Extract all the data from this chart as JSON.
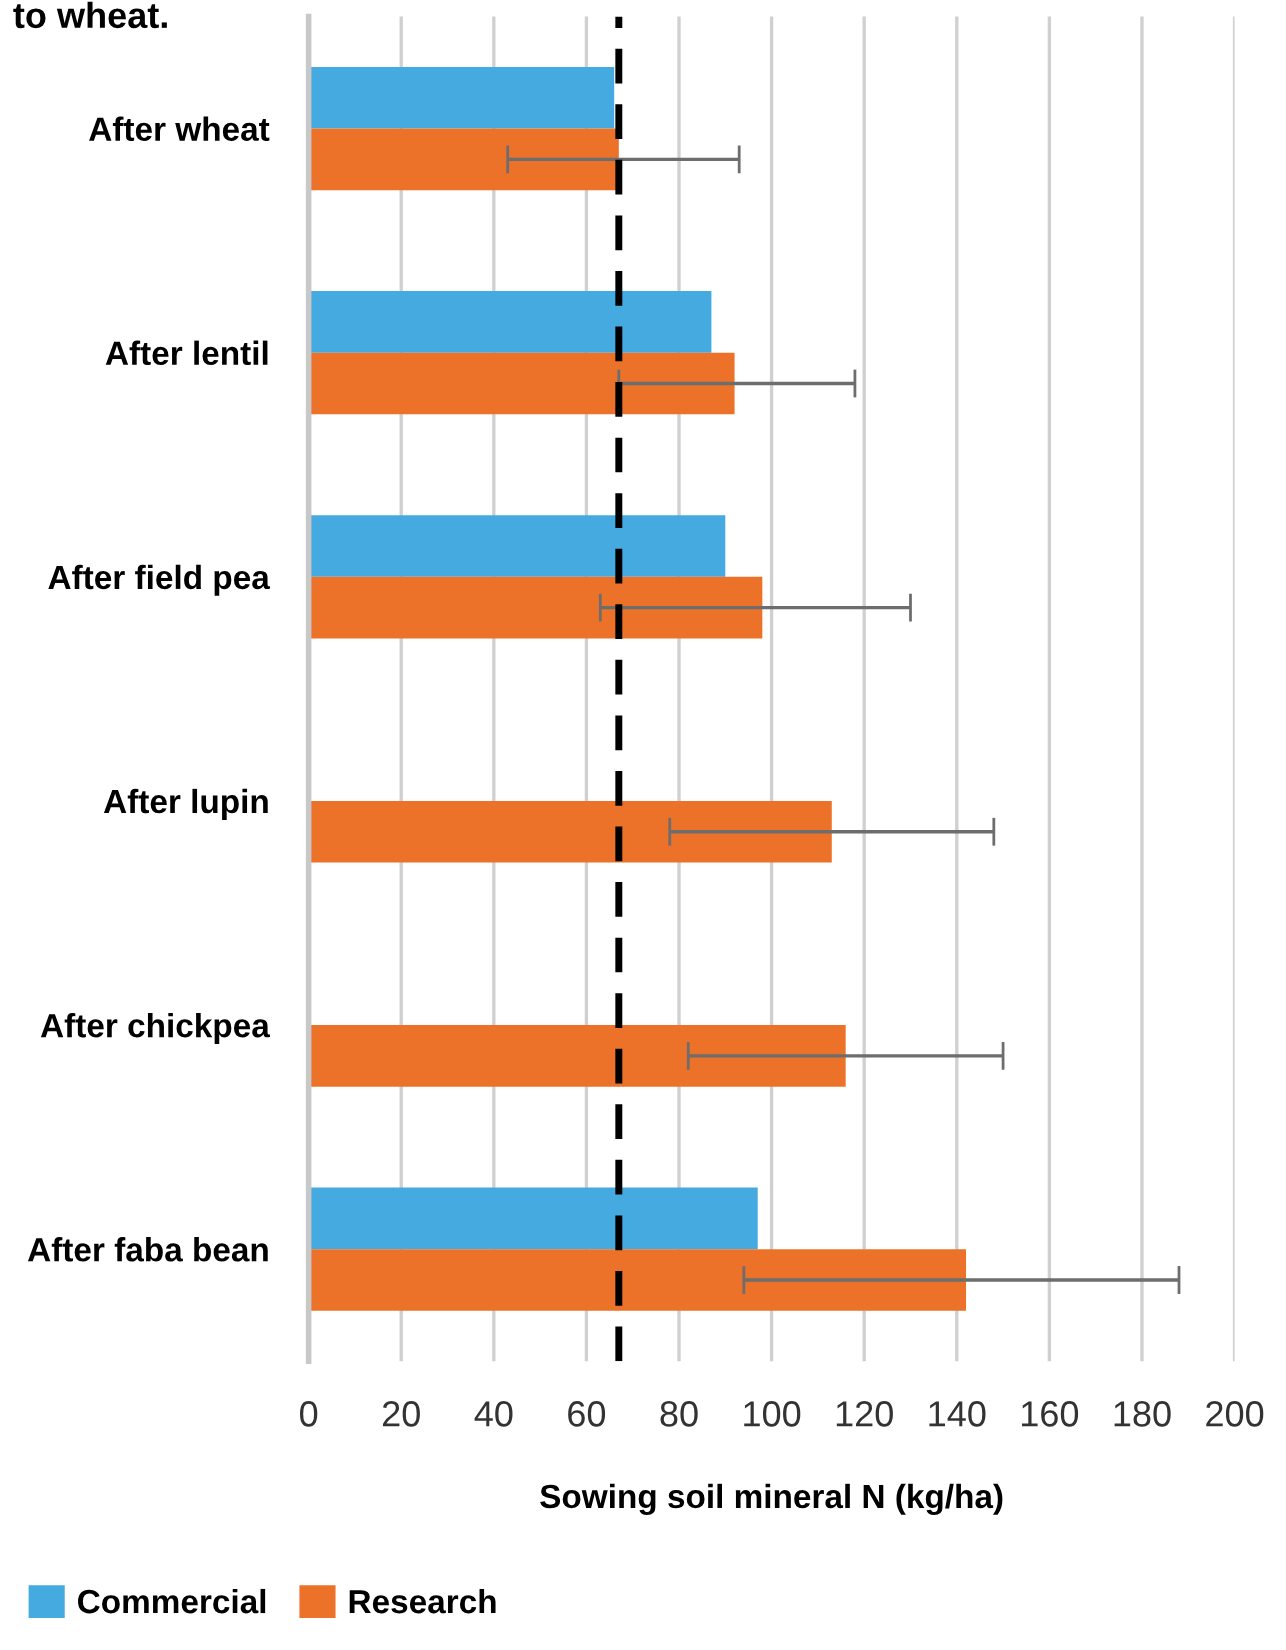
{
  "chart_data": {
    "type": "bar",
    "orientation": "horizontal",
    "title": "to wheat.",
    "xlabel": "Sowing soil mineral N (kg/ha)",
    "categories": [
      "After wheat",
      "After lentil",
      "After field pea",
      "After lupin",
      "After chickpea",
      "After faba bean"
    ],
    "series": [
      {
        "name": "Commercial",
        "color": "#45aae0",
        "values": [
          66,
          87,
          90,
          null,
          null,
          97
        ]
      },
      {
        "name": "Research",
        "color": "#ec7229",
        "values": [
          67,
          92,
          98,
          113,
          116,
          142
        ],
        "errors": [
          [
            43,
            93
          ],
          [
            67,
            118
          ],
          [
            63,
            130
          ],
          [
            78,
            148
          ],
          [
            82,
            150
          ],
          [
            94,
            188
          ]
        ]
      }
    ],
    "xlim": [
      0,
      200
    ],
    "xticks": [
      0,
      20,
      40,
      60,
      80,
      100,
      120,
      140,
      160,
      180,
      200
    ],
    "grid": "x",
    "legend": "bottom left",
    "ref_lines": [
      {
        "axis": "x",
        "value": 67,
        "color": "#000000",
        "line_style": "dashed"
      }
    ]
  }
}
